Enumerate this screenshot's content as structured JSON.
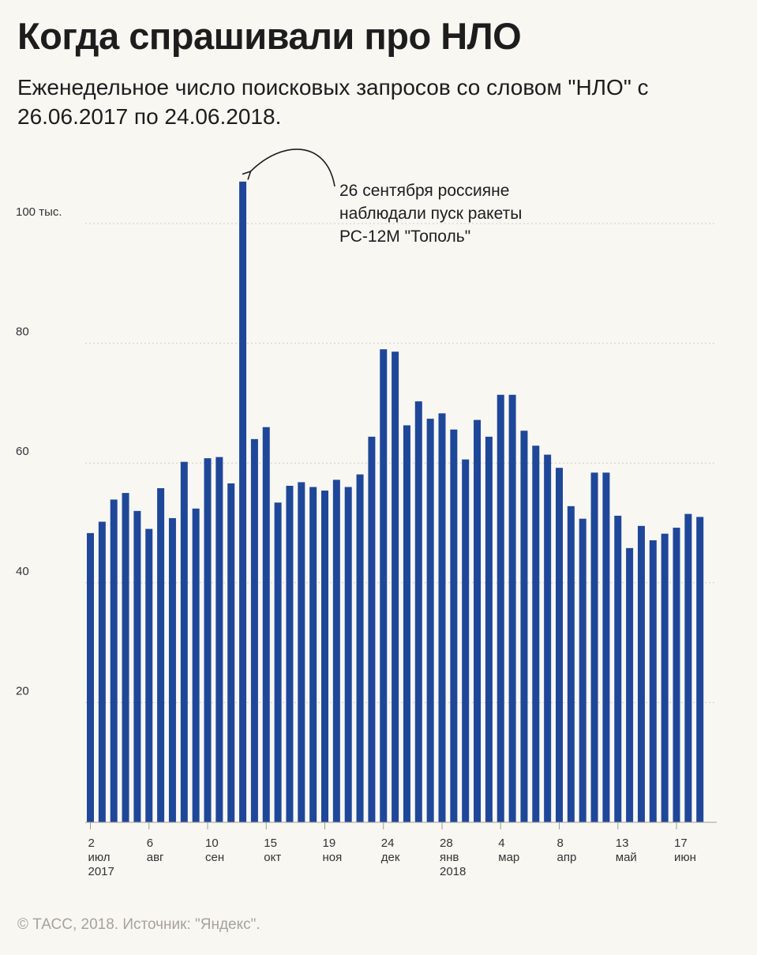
{
  "header": {
    "title": "Когда спрашивали про НЛО",
    "subtitle": "Еженедельное число поисковых запросов со словом \"НЛО\" с 26.06.2017 по 24.06.2018."
  },
  "footer": {
    "source": "© ТАСС, 2018. Источник: \"Яндекс\"."
  },
  "colors": {
    "bar": "#1f4799",
    "background": "#f8f7f2",
    "grid": "#cfcdc6"
  },
  "chart_data": {
    "type": "bar",
    "unit": "тыс.",
    "ylim": [
      0,
      115
    ],
    "yticks": [
      {
        "value": 20,
        "label": "20"
      },
      {
        "value": 40,
        "label": "40"
      },
      {
        "value": 60,
        "label": "60"
      },
      {
        "value": 80,
        "label": "80"
      },
      {
        "value": 100,
        "label": "100 тыс."
      }
    ],
    "grid": true,
    "values": [
      48.3,
      50.2,
      53.9,
      55.0,
      52.0,
      49.0,
      55.8,
      50.8,
      60.2,
      52.4,
      60.8,
      61.0,
      56.6,
      107.0,
      64.0,
      66.0,
      53.4,
      56.2,
      56.8,
      56.0,
      55.4,
      57.2,
      56.0,
      58.1,
      64.4,
      79.0,
      78.6,
      66.3,
      70.3,
      67.4,
      68.3,
      65.6,
      60.6,
      67.2,
      64.4,
      71.4,
      71.4,
      65.4,
      62.9,
      61.4,
      59.2,
      52.8,
      50.7,
      58.4,
      58.4,
      51.2,
      45.8,
      49.5,
      47.1,
      48.2,
      49.2,
      51.5,
      51.0
    ],
    "xticks": [
      {
        "index": 0,
        "lines": [
          "2",
          "июл",
          "2017"
        ]
      },
      {
        "index": 5,
        "lines": [
          "6",
          "авг"
        ]
      },
      {
        "index": 10,
        "lines": [
          "10",
          "сен"
        ]
      },
      {
        "index": 15,
        "lines": [
          "15",
          "окт"
        ]
      },
      {
        "index": 20,
        "lines": [
          "19",
          "ноя"
        ]
      },
      {
        "index": 25,
        "lines": [
          "24",
          "дек"
        ]
      },
      {
        "index": 30,
        "lines": [
          "28",
          "янв",
          "2018"
        ]
      },
      {
        "index": 35,
        "lines": [
          "4",
          "мар"
        ]
      },
      {
        "index": 40,
        "lines": [
          "8",
          "апр"
        ]
      },
      {
        "index": 45,
        "lines": [
          "13",
          "май"
        ]
      },
      {
        "index": 50,
        "lines": [
          "17",
          "июн"
        ]
      }
    ],
    "annotations": [
      {
        "bar_index": 13,
        "lines": [
          "26 сентября россияне",
          "наблюдали пуск ракеты",
          "РС-12М \"Тополь\""
        ]
      }
    ]
  }
}
